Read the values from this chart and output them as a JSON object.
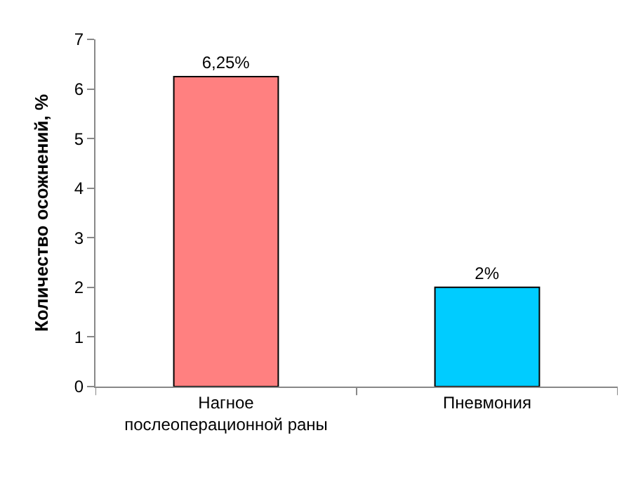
{
  "chart_data": {
    "type": "bar",
    "categories": [
      "Нагное послеоперационной раны",
      "Пневмония"
    ],
    "values": [
      6.25,
      2
    ],
    "colors": [
      "#ff8080",
      "#00ccff"
    ],
    "value_labels": [
      "6,25%",
      "2%"
    ],
    "ylabel": "Количество осожнений, %",
    "ylim": [
      0,
      7
    ],
    "yticks": [
      0,
      1,
      2,
      3,
      4,
      5,
      6,
      7
    ],
    "legend": false
  }
}
